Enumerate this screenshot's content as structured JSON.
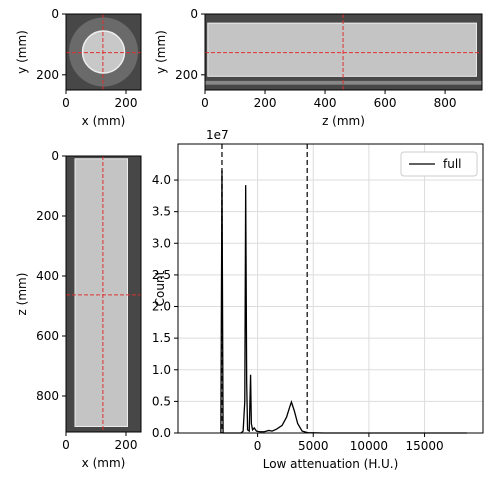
{
  "chart_data": [
    {
      "type": "image",
      "xlabel": "x (mm)",
      "ylabel": "y (mm)",
      "xlim": [
        0,
        250
      ],
      "ylim": [
        250,
        0
      ],
      "xticks": [
        0,
        200
      ],
      "yticks": [
        0,
        200
      ],
      "crosshair": [
        123,
        127
      ],
      "shape": "circle"
    },
    {
      "type": "image",
      "xlabel": "z (mm)",
      "ylabel": "y (mm)",
      "xlim": [
        0,
        923
      ],
      "ylim": [
        250,
        0
      ],
      "xticks": [
        0,
        200,
        400,
        600,
        800
      ],
      "yticks": [
        0,
        200
      ],
      "crosshair": [
        460,
        127
      ],
      "shape": "wide"
    },
    {
      "type": "image",
      "xlabel": "x (mm)",
      "ylabel": "z (mm)",
      "xlim": [
        0,
        250
      ],
      "ylim": [
        920,
        0
      ],
      "xticks": [
        0,
        200
      ],
      "yticks": [
        0,
        200,
        400,
        600,
        800
      ],
      "crosshair": [
        123,
        463
      ],
      "shape": "tall"
    },
    {
      "type": "line",
      "xlabel": "Low attenuation (H.U.)",
      "ylabel": "Count",
      "y_offset_label": "1e7",
      "xlim": [
        -7150,
        20250
      ],
      "ylim": [
        0,
        45700000
      ],
      "xticks": [
        0,
        5000,
        10000,
        15000
      ],
      "yticks": [
        {
          "value": 0,
          "label": "0.0"
        },
        {
          "value": 5000000,
          "label": "0.5"
        },
        {
          "value": 10000000,
          "label": "1.0"
        },
        {
          "value": 15000000,
          "label": "1.5"
        },
        {
          "value": 20000000,
          "label": "2.0"
        },
        {
          "value": 25000000,
          "label": "2.5"
        },
        {
          "value": 30000000,
          "label": "3.0"
        },
        {
          "value": 35000000,
          "label": "3.5"
        },
        {
          "value": 40000000,
          "label": "4.0"
        }
      ],
      "grid": true,
      "legend": "upper right",
      "vlines": [
        -3200,
        4460
      ],
      "x": [
        -3300,
        -3200,
        -3100,
        -1500,
        -1300,
        -1150,
        -1070,
        -980,
        -900,
        -750,
        -630,
        -560,
        -450,
        -300,
        -100,
        200,
        600,
        1000,
        1300,
        1700,
        2200,
        2600,
        2900,
        3040,
        3300,
        3600,
        4000,
        4500,
        6000,
        18800
      ],
      "series": [
        {
          "name": "full",
          "color": "#000000",
          "values": [
            0,
            41500000,
            0,
            0,
            300000,
            5000000,
            39200000,
            8000000,
            500000,
            300000,
            9200000,
            1500000,
            500000,
            800000,
            300000,
            200000,
            200000,
            400000,
            300000,
            600000,
            1200000,
            2500000,
            4200000,
            4900000,
            3500000,
            1500000,
            300000,
            50000,
            0,
            0
          ]
        }
      ]
    }
  ]
}
